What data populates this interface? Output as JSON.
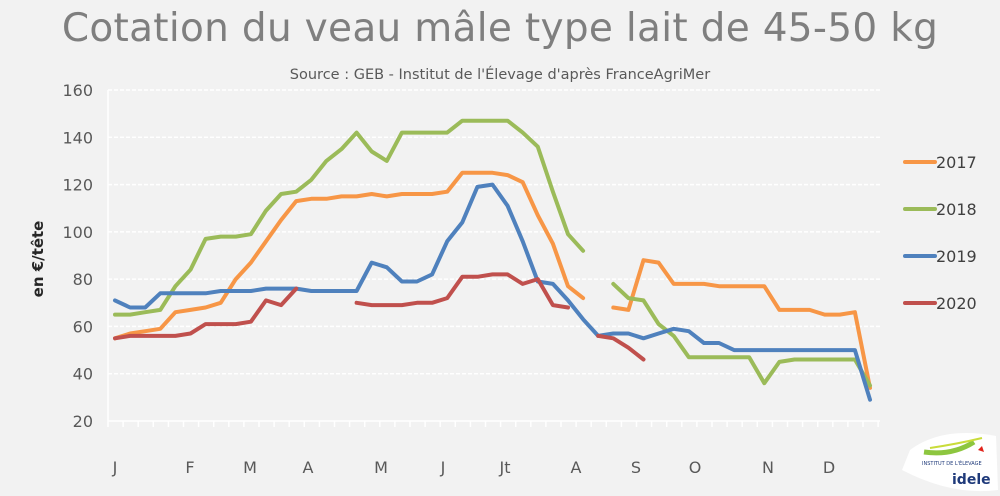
{
  "chart_data": {
    "type": "line",
    "title": "Cotation du veau mâle type lait de 45-50 kg",
    "subtitle": "Source : GEB - Institut de l'Élevage d'après FranceAgriMer",
    "xlabel": "",
    "ylabel": "en €/tête",
    "ylim": [
      20,
      160
    ],
    "yticks": [
      20,
      40,
      60,
      80,
      100,
      120,
      140,
      160
    ],
    "xtick_labels": [
      "J",
      "F",
      "M",
      "A",
      "M",
      "J",
      "Jt",
      "A",
      "S",
      "O",
      "N",
      "D"
    ],
    "x_unit": "week",
    "grid": true,
    "legend_position": "right",
    "series": [
      {
        "name": "2017",
        "color": "#f79646",
        "values": [
          55,
          57,
          58,
          59,
          66,
          67,
          68,
          70,
          80,
          87,
          96,
          105,
          113,
          114,
          114,
          115,
          115,
          116,
          115,
          116,
          116,
          116,
          117,
          125,
          125,
          125,
          124,
          121,
          107,
          95,
          77,
          72,
          null,
          68,
          67,
          88,
          87,
          78,
          78,
          78,
          77,
          77,
          77,
          77,
          67,
          67,
          67,
          65,
          65,
          66,
          34
        ]
      },
      {
        "name": "2018",
        "color": "#9bbb59",
        "values": [
          65,
          65,
          66,
          67,
          77,
          84,
          97,
          98,
          98,
          99,
          109,
          116,
          117,
          122,
          130,
          135,
          142,
          134,
          130,
          142,
          142,
          142,
          142,
          147,
          147,
          147,
          147,
          142,
          136,
          117,
          99,
          92,
          null,
          78,
          72,
          71,
          61,
          56,
          47,
          47,
          47,
          47,
          47,
          36,
          45,
          46,
          46,
          46,
          46,
          46,
          35
        ]
      },
      {
        "name": "2019",
        "color": "#4f81bd",
        "values": [
          71,
          68,
          68,
          74,
          74,
          74,
          74,
          75,
          75,
          75,
          76,
          76,
          76,
          75,
          75,
          75,
          75,
          87,
          85,
          79,
          79,
          82,
          96,
          104,
          119,
          120,
          111,
          96,
          79,
          78,
          71,
          63,
          56,
          57,
          57,
          55,
          57,
          59,
          58,
          53,
          53,
          50,
          50,
          50,
          50,
          50,
          50,
          50,
          50,
          50,
          29
        ]
      },
      {
        "name": "2020",
        "color": "#c0504d",
        "values": [
          55,
          56,
          56,
          56,
          56,
          57,
          61,
          61,
          61,
          62,
          71,
          69,
          76,
          null,
          null,
          null,
          70,
          69,
          69,
          69,
          70,
          70,
          72,
          81,
          81,
          82,
          82,
          78,
          80,
          69,
          68,
          null,
          56,
          55,
          51,
          46
        ]
      }
    ]
  },
  "logo": {
    "text": "idele",
    "subtext": "INSTITUT DE L'ÉLEVAGE"
  }
}
